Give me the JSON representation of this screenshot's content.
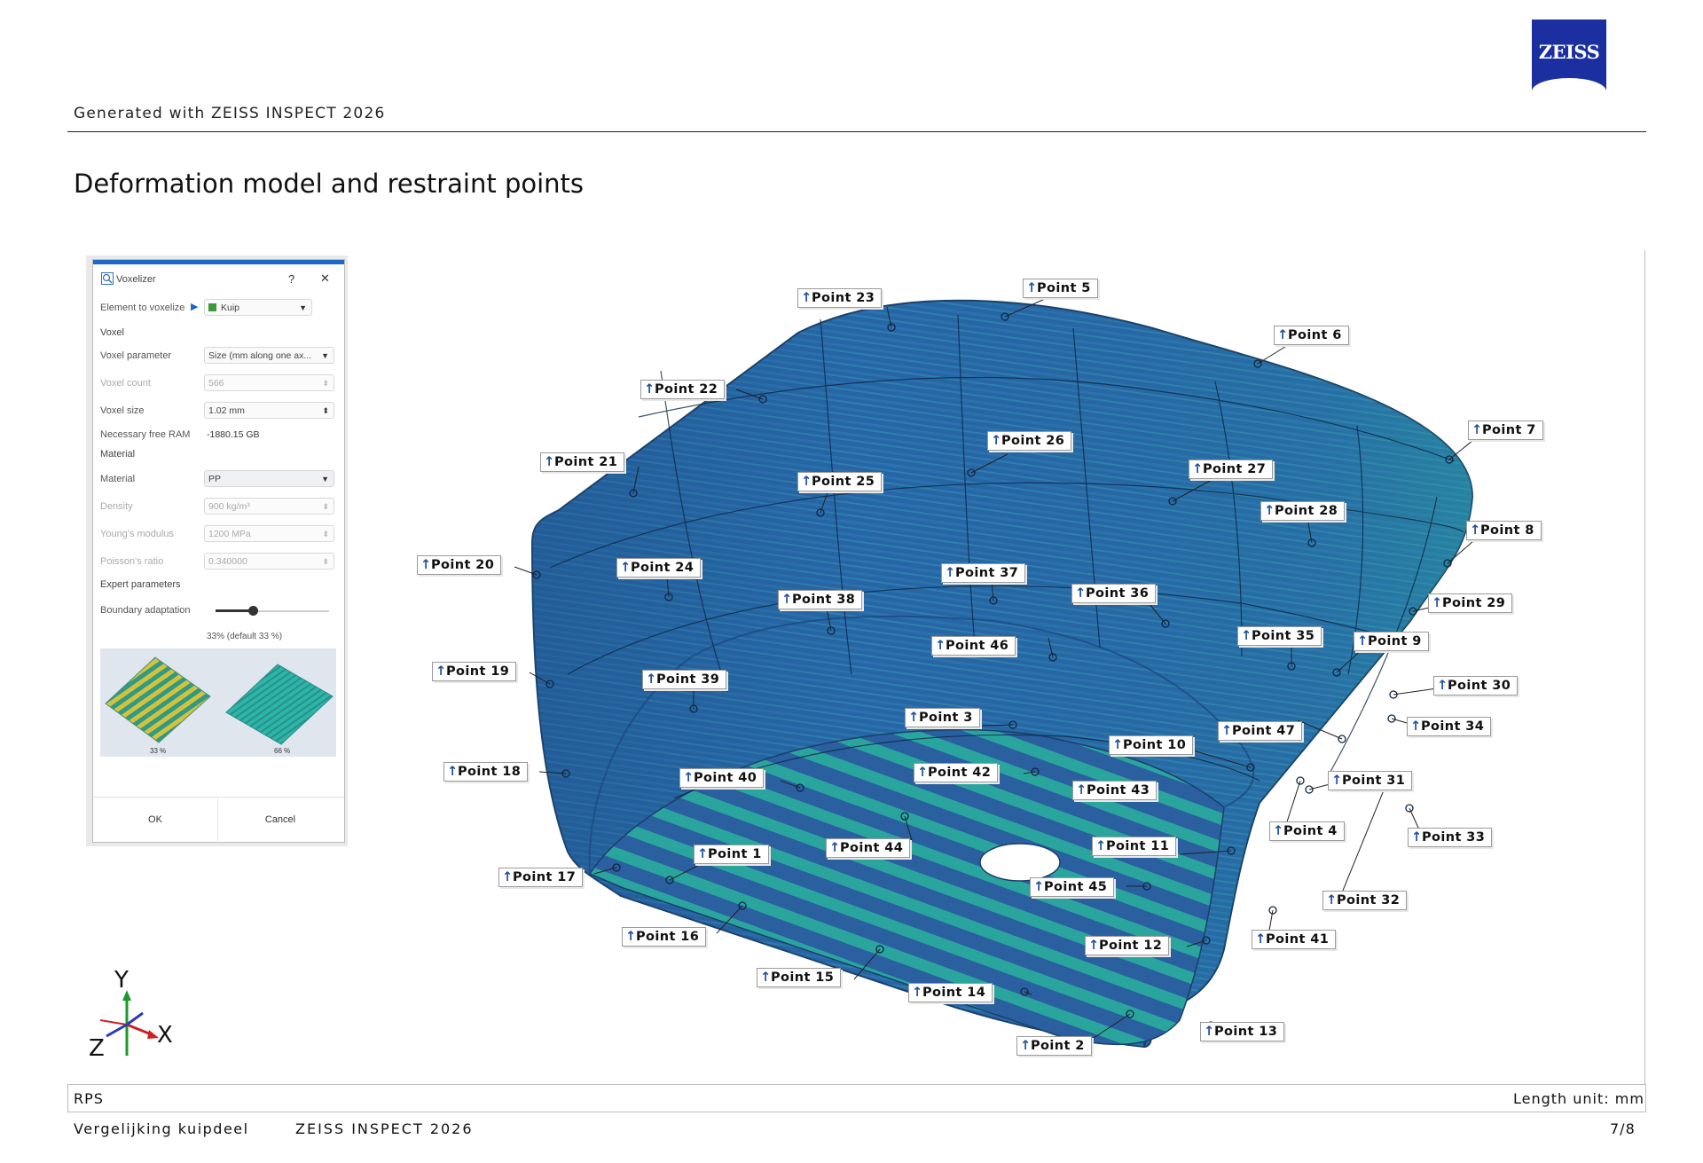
{
  "header": {
    "generated_text": "Generated with ZEISS INSPECT 2026",
    "logo_text": "ZEISS",
    "page_title": "Deformation model and restraint points"
  },
  "dialog": {
    "title": "Voxelizer",
    "help": "?",
    "close": "✕",
    "element_label": "Element to voxelize",
    "element_value": "Kuip",
    "section_voxel": "Voxel",
    "voxel_parameter_label": "Voxel parameter",
    "voxel_parameter_value": "Size (mm along one ax...",
    "voxel_count_label": "Voxel count",
    "voxel_count_value": "566",
    "voxel_size_label": "Voxel size",
    "voxel_size_value": "1.02 mm",
    "free_ram_label": "Necessary free RAM",
    "free_ram_value": "-1880.15 GB",
    "section_material": "Material",
    "material_label": "Material",
    "material_value": "PP",
    "density_label": "Density",
    "density_value": "900 kg/m³",
    "youngs_label": "Young's modulus",
    "youngs_value": "1200 MPa",
    "poisson_label": "Poisson's ratio",
    "poisson_value": "0.340000",
    "section_expert": "Expert parameters",
    "boundary_label": "Boundary adaptation",
    "boundary_value": "33% (default 33 %)",
    "preview_left": "33 %",
    "preview_right": "66 %",
    "ok": "OK",
    "cancel": "Cancel"
  },
  "points": [
    {
      "label": "Point 1"
    },
    {
      "label": "Point 2"
    },
    {
      "label": "Point 3"
    },
    {
      "label": "Point 4"
    },
    {
      "label": "Point 5"
    },
    {
      "label": "Point 6"
    },
    {
      "label": "Point 7"
    },
    {
      "label": "Point 8"
    },
    {
      "label": "Point 9"
    },
    {
      "label": "Point 10"
    },
    {
      "label": "Point 11"
    },
    {
      "label": "Point 12"
    },
    {
      "label": "Point 13"
    },
    {
      "label": "Point 14"
    },
    {
      "label": "Point 15"
    },
    {
      "label": "Point 16"
    },
    {
      "label": "Point 17"
    },
    {
      "label": "Point 18"
    },
    {
      "label": "Point 19"
    },
    {
      "label": "Point 20"
    },
    {
      "label": "Point 21"
    },
    {
      "label": "Point 22"
    },
    {
      "label": "Point 23"
    },
    {
      "label": "Point 24"
    },
    {
      "label": "Point 25"
    },
    {
      "label": "Point 26"
    },
    {
      "label": "Point 27"
    },
    {
      "label": "Point 28"
    },
    {
      "label": "Point 29"
    },
    {
      "label": "Point 30"
    },
    {
      "label": "Point 31"
    },
    {
      "label": "Point 32"
    },
    {
      "label": "Point 33"
    },
    {
      "label": "Point 34"
    },
    {
      "label": "Point 35"
    },
    {
      "label": "Point 36"
    },
    {
      "label": "Point 37"
    },
    {
      "label": "Point 38"
    },
    {
      "label": "Point 39"
    },
    {
      "label": "Point 40"
    },
    {
      "label": "Point 41"
    },
    {
      "label": "Point 42"
    },
    {
      "label": "Point 43"
    },
    {
      "label": "Point 44"
    },
    {
      "label": "Point 45"
    },
    {
      "label": "Point 46"
    },
    {
      "label": "Point 47"
    }
  ],
  "axes": {
    "x": "X",
    "y": "Y",
    "z": "Z"
  },
  "footer": {
    "left": "RPS",
    "right": "Length unit: mm",
    "doc_name": "Vergelijking kuipdeel",
    "product": "ZEISS INSPECT 2026",
    "page": "7/8"
  },
  "colors": {
    "brand": "#1b2fa0",
    "seat_blue": "#2a6aa8",
    "seat_teal": "#2aa6a0",
    "label_arrow": "#1d4fa0"
  }
}
